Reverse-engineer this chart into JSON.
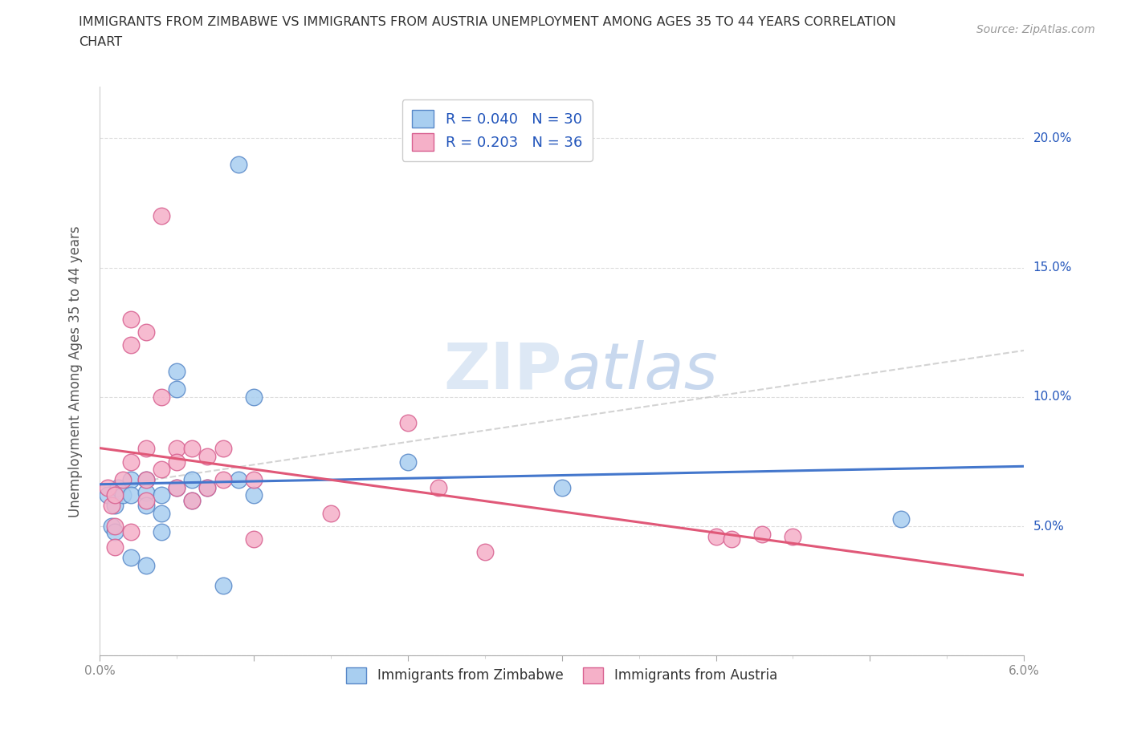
{
  "title_line1": "IMMIGRANTS FROM ZIMBABWE VS IMMIGRANTS FROM AUSTRIA UNEMPLOYMENT AMONG AGES 35 TO 44 YEARS CORRELATION",
  "title_line2": "CHART",
  "source": "Source: ZipAtlas.com",
  "ylabel": "Unemployment Among Ages 35 to 44 years",
  "xlim": [
    0.0,
    0.06
  ],
  "ylim": [
    0.0,
    0.22
  ],
  "xticks_major": [
    0.0,
    0.01,
    0.02,
    0.03,
    0.04,
    0.05,
    0.06
  ],
  "xticklabels": [
    "0.0%",
    "",
    "",
    "",
    "",
    "",
    "6.0%"
  ],
  "yticks": [
    0.0,
    0.05,
    0.1,
    0.15,
    0.2
  ],
  "yticklabels_right": [
    "",
    "5.0%",
    "10.0%",
    "15.0%",
    "20.0%"
  ],
  "legend_R_blue": "0.040",
  "legend_N_blue": "30",
  "legend_R_pink": "0.203",
  "legend_N_pink": "36",
  "blue_scatter_color": "#A8CEF0",
  "pink_scatter_color": "#F5B0C8",
  "blue_edge_color": "#5888C8",
  "pink_edge_color": "#D86090",
  "blue_line_color": "#4477CC",
  "pink_line_color": "#E05878",
  "dash_line_color": "#C8C8C8",
  "watermark_color": "#DDE8F5",
  "legend_text_color": "#2255BB",
  "grid_color": "#DDDDDD",
  "tick_label_color": "#888888",
  "right_axis_color": "#2255BB",
  "zimbabwe_x": [
    0.0005,
    0.0008,
    0.001,
    0.001,
    0.0012,
    0.0015,
    0.002,
    0.002,
    0.002,
    0.003,
    0.003,
    0.003,
    0.003,
    0.004,
    0.004,
    0.004,
    0.005,
    0.005,
    0.005,
    0.006,
    0.006,
    0.007,
    0.008,
    0.009,
    0.009,
    0.01,
    0.01,
    0.02,
    0.03,
    0.052
  ],
  "zimbabwe_y": [
    0.062,
    0.05,
    0.058,
    0.048,
    0.065,
    0.062,
    0.068,
    0.062,
    0.038,
    0.068,
    0.063,
    0.058,
    0.035,
    0.062,
    0.055,
    0.048,
    0.11,
    0.103,
    0.065,
    0.068,
    0.06,
    0.065,
    0.027,
    0.19,
    0.068,
    0.1,
    0.062,
    0.075,
    0.065,
    0.053
  ],
  "austria_x": [
    0.0005,
    0.0008,
    0.001,
    0.001,
    0.001,
    0.0015,
    0.002,
    0.002,
    0.002,
    0.002,
    0.003,
    0.003,
    0.003,
    0.003,
    0.004,
    0.004,
    0.004,
    0.005,
    0.005,
    0.005,
    0.006,
    0.006,
    0.007,
    0.007,
    0.008,
    0.008,
    0.01,
    0.01,
    0.015,
    0.02,
    0.022,
    0.025,
    0.04,
    0.041,
    0.043,
    0.045
  ],
  "austria_y": [
    0.065,
    0.058,
    0.062,
    0.05,
    0.042,
    0.068,
    0.13,
    0.12,
    0.075,
    0.048,
    0.125,
    0.08,
    0.068,
    0.06,
    0.17,
    0.1,
    0.072,
    0.08,
    0.075,
    0.065,
    0.08,
    0.06,
    0.077,
    0.065,
    0.08,
    0.068,
    0.068,
    0.045,
    0.055,
    0.09,
    0.065,
    0.04,
    0.046,
    0.045,
    0.047,
    0.046
  ]
}
